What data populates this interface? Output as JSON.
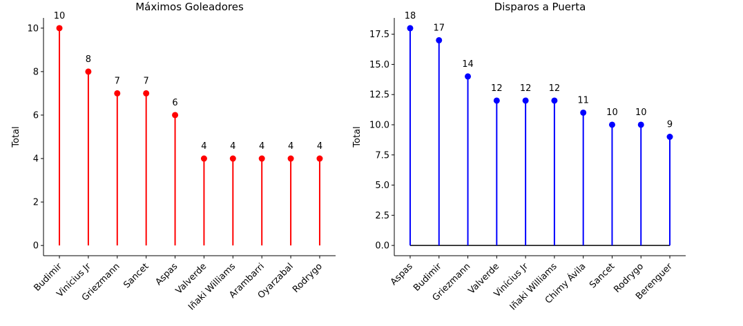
{
  "chart_data": [
    {
      "type": "lollipop",
      "title": "Máximos Goleadores",
      "ylabel": "Total",
      "xlabel": "",
      "color": "#ff0000",
      "ylim": [
        -0.47,
        10.47
      ],
      "yticks": [
        0,
        2,
        4,
        6,
        8,
        10
      ],
      "ytick_labels": [
        "0",
        "2",
        "4",
        "6",
        "8",
        "10"
      ],
      "grid": false,
      "baseline": false,
      "categories": [
        "Budimir",
        "Vinícius Jr",
        "Griezmann",
        "Sancet",
        "Aspas",
        "Valverde",
        "Iñaki Williams",
        "Arambarri",
        "Oyarzabal",
        "Rodrygo"
      ],
      "values": [
        10,
        8,
        7,
        7,
        6,
        4,
        4,
        4,
        4,
        4
      ],
      "data_labels": [
        "10",
        "8",
        "7",
        "7",
        "6",
        "4",
        "4",
        "4",
        "4",
        "4"
      ]
    },
    {
      "type": "lollipop",
      "title": "Disparos a Puerta",
      "ylabel": "Total",
      "xlabel": "",
      "color": "#0000ff",
      "ylim": [
        -0.85,
        18.85
      ],
      "yticks": [
        0,
        2.5,
        5,
        7.5,
        10,
        12.5,
        15,
        17.5
      ],
      "ytick_labels": [
        "0.0",
        "2.5",
        "5.0",
        "7.5",
        "10.0",
        "12.5",
        "15.0",
        "17.5"
      ],
      "grid": false,
      "baseline": true,
      "categories": [
        "Aspas",
        "Budimir",
        "Griezmann",
        "Valverde",
        "Vinícius Jr",
        "Iñaki Williams",
        "Chimy Ávila",
        "Sancet",
        "Rodrygo",
        "Berenguer"
      ],
      "values": [
        18,
        17,
        14,
        12,
        12,
        12,
        11,
        10,
        10,
        9
      ],
      "data_labels": [
        "18",
        "17",
        "14",
        "12",
        "12",
        "12",
        "11",
        "10",
        "10",
        "9"
      ]
    }
  ]
}
